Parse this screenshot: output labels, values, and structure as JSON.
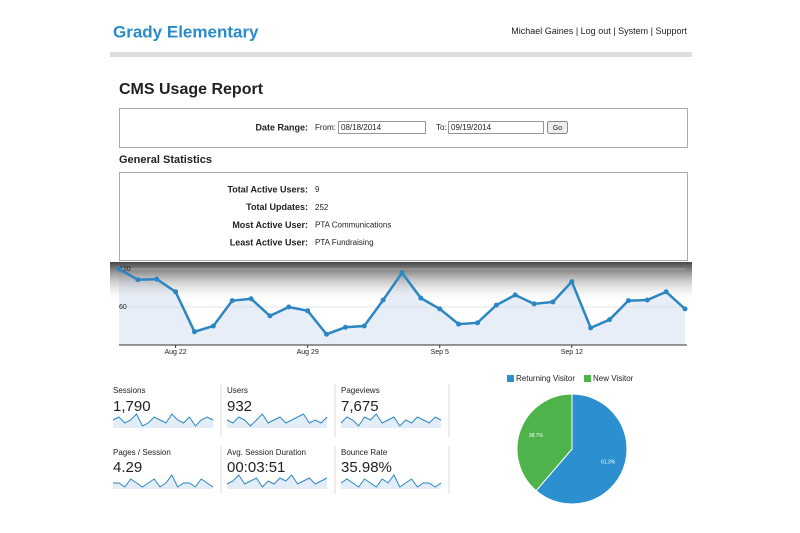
{
  "header": {
    "title": "Grady Elementary",
    "links": [
      "Michael Gaines",
      "Log out",
      "System",
      "Support"
    ],
    "separator": "|"
  },
  "report": {
    "title": "CMS Usage Report",
    "date_range": {
      "label": "Date Range:",
      "from_label": "From:",
      "from": "08/18/2014",
      "to_label": "To:",
      "to": "09/19/2014",
      "button": "Go"
    }
  },
  "general_statistics": {
    "title": "General Statistics",
    "rows": [
      {
        "label": "Total Active Users:",
        "value": 9
      },
      {
        "label": "Total Updates:",
        "value": 252
      },
      {
        "label": "Most Active User:",
        "value": "PTA Communications"
      },
      {
        "label": "Least Active User:",
        "value": "PTA Fundraising"
      }
    ]
  },
  "chart_data": [
    {
      "type": "line",
      "categories": [
        null,
        null,
        null,
        "Aug 22",
        null,
        null,
        null,
        null,
        null,
        null,
        "Aug 29",
        null,
        null,
        null,
        null,
        null,
        null,
        "Sep 5",
        null,
        null,
        null,
        null,
        null,
        null,
        "Sep 12",
        null,
        null,
        null,
        null,
        null,
        null
      ],
      "series": [
        {
          "color": "#2b86c2",
          "values": [
            120,
            103,
            104,
            84,
            21,
            30,
            70,
            73,
            46,
            60,
            54,
            17,
            28,
            30,
            71,
            114,
            74,
            57,
            33,
            35,
            63,
            79,
            65,
            68,
            100,
            27,
            40,
            70,
            71,
            84,
            57
          ]
        }
      ],
      "ylim": [
        0,
        120
      ],
      "yticks": [
        60,
        120
      ]
    },
    {
      "type": "pie",
      "categories": [
        "Returning Visitor",
        "New Visitor"
      ],
      "values": [
        61.3,
        38.7
      ],
      "value_labels": [
        "61.3%",
        "38.7%"
      ],
      "colors": [
        "#2b8fd0",
        "#4db34a"
      ],
      "legend": "top"
    }
  ],
  "metrics": [
    {
      "label": "Sessions",
      "value": "1,790",
      "spark": [
        5,
        6,
        4,
        5,
        7,
        3,
        4,
        6,
        5,
        4,
        7,
        5,
        4,
        6,
        3,
        5,
        6,
        5
      ]
    },
    {
      "label": "Users",
      "value": "932",
      "spark": [
        5,
        4,
        6,
        5,
        3,
        5,
        7,
        4,
        5,
        6,
        4,
        5,
        6,
        7,
        4,
        5,
        4,
        6
      ]
    },
    {
      "label": "Pageviews",
      "value": "7,675",
      "spark": [
        4,
        6,
        5,
        3,
        6,
        5,
        7,
        4,
        5,
        6,
        3,
        5,
        4,
        6,
        5,
        4,
        6,
        5
      ]
    },
    {
      "label": "Pages / Session",
      "value": "4.29",
      "spark": [
        5,
        5,
        4,
        6,
        5,
        4,
        5,
        6,
        4,
        5,
        7,
        4,
        5,
        5,
        4,
        6,
        5,
        4
      ]
    },
    {
      "label": "Avg. Session Duration",
      "value": "00:03:51",
      "spark": [
        4,
        5,
        7,
        4,
        5,
        6,
        3,
        5,
        4,
        6,
        5,
        7,
        4,
        5,
        6,
        4,
        5,
        6
      ]
    },
    {
      "label": "Bounce Rate",
      "value": "35.98%",
      "spark": [
        5,
        6,
        5,
        4,
        6,
        5,
        4,
        6,
        5,
        7,
        4,
        5,
        6,
        4,
        5,
        5,
        4,
        5
      ]
    }
  ]
}
